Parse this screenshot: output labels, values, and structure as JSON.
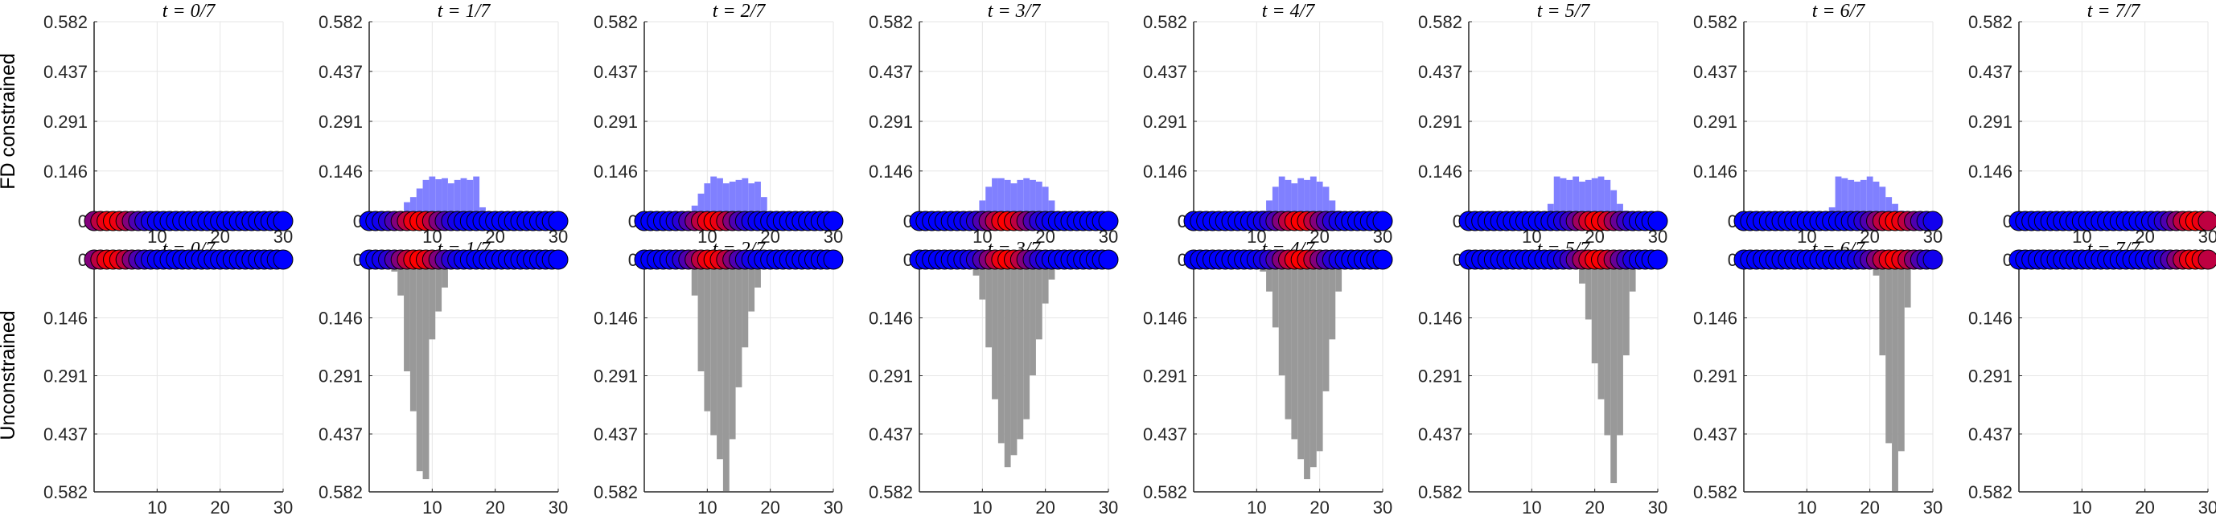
{
  "chart_data": {
    "type": "bar",
    "frames": [
      "t = 0/7",
      "t = 1/7",
      "t = 2/7",
      "t = 3/7",
      "t = 4/7",
      "t = 5/7",
      "t = 6/7",
      "t = 7/7"
    ],
    "row_labels": [
      "FD constrained",
      "Unconstrained"
    ],
    "xlim": [
      0,
      30
    ],
    "xticks": [
      10,
      20,
      30
    ],
    "xtick_labels": [
      "10",
      "20",
      "30"
    ],
    "ylim": [
      0,
      0.582
    ],
    "yticks": [
      0,
      0.146,
      0.291,
      0.437,
      0.582
    ],
    "ytick_labels": [
      "0",
      "0.146",
      "0.291",
      "0.437",
      "0.582"
    ],
    "grid": true,
    "num_markers": 30,
    "colors": {
      "constrained_bars": "#8080ff",
      "unconstrained_bars": "#999999",
      "marker_red": "#ff0000",
      "marker_blue": "#0000ff",
      "marker_edge": "#000000",
      "grid": "#e6e6e6",
      "axis": "#262626"
    },
    "hot_marker_centers": [
      3,
      8,
      11,
      14,
      17,
      20.5,
      24,
      28
    ],
    "constrained": [
      {
        "x": [],
        "values": []
      },
      {
        "x": [
          6,
          7,
          8,
          9,
          10,
          11,
          12,
          13,
          14,
          15,
          16,
          17,
          18
        ],
        "values": [
          0.055,
          0.07,
          0.095,
          0.12,
          0.13,
          0.122,
          0.125,
          0.11,
          0.12,
          0.125,
          0.12,
          0.13,
          0.04
        ]
      },
      {
        "x": [
          8,
          9,
          10,
          11,
          12,
          13,
          14,
          15,
          16,
          17,
          18,
          19,
          20
        ],
        "values": [
          0.045,
          0.08,
          0.11,
          0.13,
          0.125,
          0.11,
          0.115,
          0.12,
          0.125,
          0.11,
          0.115,
          0.07,
          0.02
        ]
      },
      {
        "x": [
          9,
          10,
          11,
          12,
          13,
          14,
          15,
          16,
          17,
          18,
          19,
          20,
          21,
          22
        ],
        "values": [
          0.03,
          0.06,
          0.1,
          0.125,
          0.125,
          0.12,
          0.11,
          0.12,
          0.125,
          0.12,
          0.115,
          0.1,
          0.06,
          0.02
        ]
      },
      {
        "x": [
          11,
          12,
          13,
          14,
          15,
          16,
          17,
          18,
          19,
          20,
          21,
          22,
          23,
          24
        ],
        "values": [
          0.03,
          0.06,
          0.1,
          0.13,
          0.12,
          0.11,
          0.125,
          0.12,
          0.13,
          0.115,
          0.1,
          0.06,
          0.03,
          0.01
        ]
      },
      {
        "x": [
          13,
          14,
          15,
          16,
          17,
          18,
          19,
          20,
          21,
          22,
          23,
          24,
          25,
          26,
          27
        ],
        "values": [
          0.05,
          0.13,
          0.125,
          0.12,
          0.13,
          0.115,
          0.12,
          0.125,
          0.13,
          0.12,
          0.09,
          0.05,
          0.03,
          0.015,
          0.005
        ]
      },
      {
        "x": [
          14,
          15,
          16,
          17,
          18,
          19,
          20,
          21,
          22,
          23,
          24,
          25,
          26,
          27
        ],
        "values": [
          0.04,
          0.13,
          0.125,
          0.12,
          0.115,
          0.12,
          0.13,
          0.115,
          0.1,
          0.07,
          0.05,
          0.03,
          0.015,
          0.005
        ]
      },
      {
        "x": [],
        "values": []
      }
    ],
    "unconstrained": [
      {
        "x": [],
        "values": []
      },
      {
        "x": [
          4,
          5,
          6,
          7,
          8,
          9,
          10,
          11,
          12
        ],
        "values": [
          0.03,
          0.09,
          0.28,
          0.38,
          0.53,
          0.55,
          0.2,
          0.13,
          0.07
        ]
      },
      {
        "x": [
          7,
          8,
          9,
          10,
          11,
          12,
          13,
          14,
          15,
          16,
          17,
          18,
          19
        ],
        "values": [
          0.02,
          0.09,
          0.28,
          0.38,
          0.44,
          0.5,
          0.58,
          0.45,
          0.32,
          0.22,
          0.13,
          0.07,
          0.02
        ]
      },
      {
        "x": [
          8,
          9,
          10,
          11,
          12,
          13,
          14,
          15,
          16,
          17,
          18,
          19,
          20,
          21,
          22
        ],
        "values": [
          0.01,
          0.04,
          0.1,
          0.22,
          0.35,
          0.46,
          0.52,
          0.49,
          0.45,
          0.4,
          0.29,
          0.2,
          0.11,
          0.05,
          0.01
        ]
      },
      {
        "x": [
          10,
          11,
          12,
          13,
          14,
          15,
          16,
          17,
          18,
          19,
          20,
          21,
          22,
          23,
          24
        ],
        "values": [
          0.01,
          0.03,
          0.08,
          0.17,
          0.29,
          0.4,
          0.45,
          0.5,
          0.55,
          0.52,
          0.48,
          0.33,
          0.2,
          0.08,
          0.02
        ]
      },
      {
        "x": [
          17,
          18,
          19,
          20,
          21,
          22,
          23,
          24,
          25,
          26
        ],
        "values": [
          0.02,
          0.06,
          0.15,
          0.26,
          0.35,
          0.44,
          0.56,
          0.44,
          0.24,
          0.08
        ]
      },
      {
        "x": [
          21,
          22,
          23,
          24,
          25,
          26
        ],
        "values": [
          0.04,
          0.24,
          0.46,
          0.58,
          0.48,
          0.12
        ]
      },
      {
        "x": [],
        "values": []
      }
    ]
  }
}
